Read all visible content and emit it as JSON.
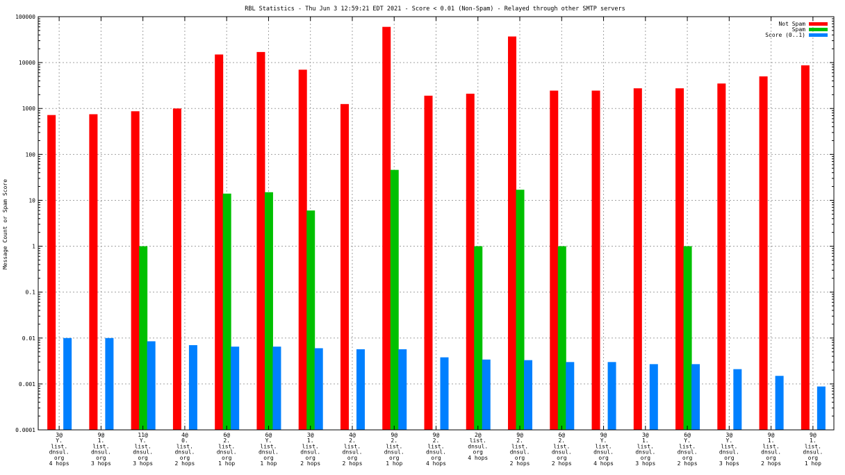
{
  "chart_data": {
    "type": "bar",
    "title": "RBL Statistics - Thu Jun  3 12:59:21 EDT 2021 - Score < 0.01 (Non-Spam) - Relayed through other SMTP servers",
    "ylabel": "Message Count or Spam Score",
    "xlabel": "",
    "yscale": "log",
    "ylim": [
      0.0001,
      100000
    ],
    "yticks": [
      "0.0001",
      "0.001",
      "0.01",
      "0.1",
      "1",
      "10",
      "100",
      "1000",
      "10000",
      "100000"
    ],
    "grid": true,
    "legend_position": "top-right",
    "categories": [
      [
        "3@",
        "Y.",
        "list.",
        "dnsul.",
        "org",
        "4 hops"
      ],
      [
        "9@",
        "1.",
        "list.",
        "dnsul.",
        "org",
        "3 hops"
      ],
      [
        "11@",
        "Y.",
        "list.",
        "dnsul.",
        "org",
        "3 hops"
      ],
      [
        "4@",
        "0.",
        "list.",
        "dnsul.",
        "org",
        "2 hops"
      ],
      [
        "6@",
        "2.",
        "list.",
        "dnsul.",
        "org",
        "1 hop"
      ],
      [
        "6@",
        "Y.",
        "list.",
        "dnsul.",
        "org",
        "1 hop"
      ],
      [
        "3@",
        "1.",
        "list.",
        "dnsul.",
        "org",
        "2 hops"
      ],
      [
        "4@",
        "2.",
        "list.",
        "dnsul.",
        "org",
        "2 hops"
      ],
      [
        "9@",
        "2.",
        "list.",
        "dnsul.",
        "org",
        "1 hop"
      ],
      [
        "9@",
        "2.",
        "list.",
        "dnsul.",
        "org",
        "4 hops"
      ],
      [
        "2@",
        "list.",
        "dnsul.",
        "org",
        "4 hops"
      ],
      [
        "9@",
        "2.",
        "list.",
        "dnsul.",
        "org",
        "2 hops"
      ],
      [
        "6@",
        "2.",
        "list.",
        "dnsul.",
        "org",
        "2 hops"
      ],
      [
        "9@",
        "Y.",
        "list.",
        "dnsul.",
        "org",
        "4 hops"
      ],
      [
        "3@",
        "1.",
        "list.",
        "dnsul.",
        "org",
        "3 hops"
      ],
      [
        "6@",
        "Y.",
        "list.",
        "dnsul.",
        "org",
        "2 hops"
      ],
      [
        "3@",
        "Y.",
        "list.",
        "dnsul.",
        "org",
        "3 hops"
      ],
      [
        "9@",
        "1.",
        "list.",
        "dnsul.",
        "org",
        "2 hops"
      ],
      [
        "9@",
        "1.",
        "list.",
        "dnsul.",
        "org",
        "1 hop"
      ]
    ],
    "series": [
      {
        "name": "Not Spam",
        "color": "#ff0000",
        "values": [
          720,
          750,
          870,
          1000,
          15000,
          17000,
          7000,
          1250,
          60000,
          1900,
          2100,
          37000,
          2450,
          2450,
          2750,
          2750,
          3500,
          5000,
          8700
        ]
      },
      {
        "name": "Spam",
        "color": "#00c000",
        "values": [
          null,
          null,
          1,
          null,
          14,
          15,
          6,
          null,
          46,
          null,
          1,
          17,
          1,
          null,
          null,
          1,
          null,
          null,
          null
        ]
      },
      {
        "name": "Score (0..1)",
        "color": "#0080ff",
        "values": [
          0.01,
          0.01,
          0.0085,
          0.007,
          0.0065,
          0.0065,
          0.006,
          0.0057,
          0.0057,
          0.0038,
          0.0034,
          0.0033,
          0.003,
          0.003,
          0.0027,
          0.0027,
          0.0021,
          0.0015,
          0.00088
        ]
      }
    ]
  }
}
